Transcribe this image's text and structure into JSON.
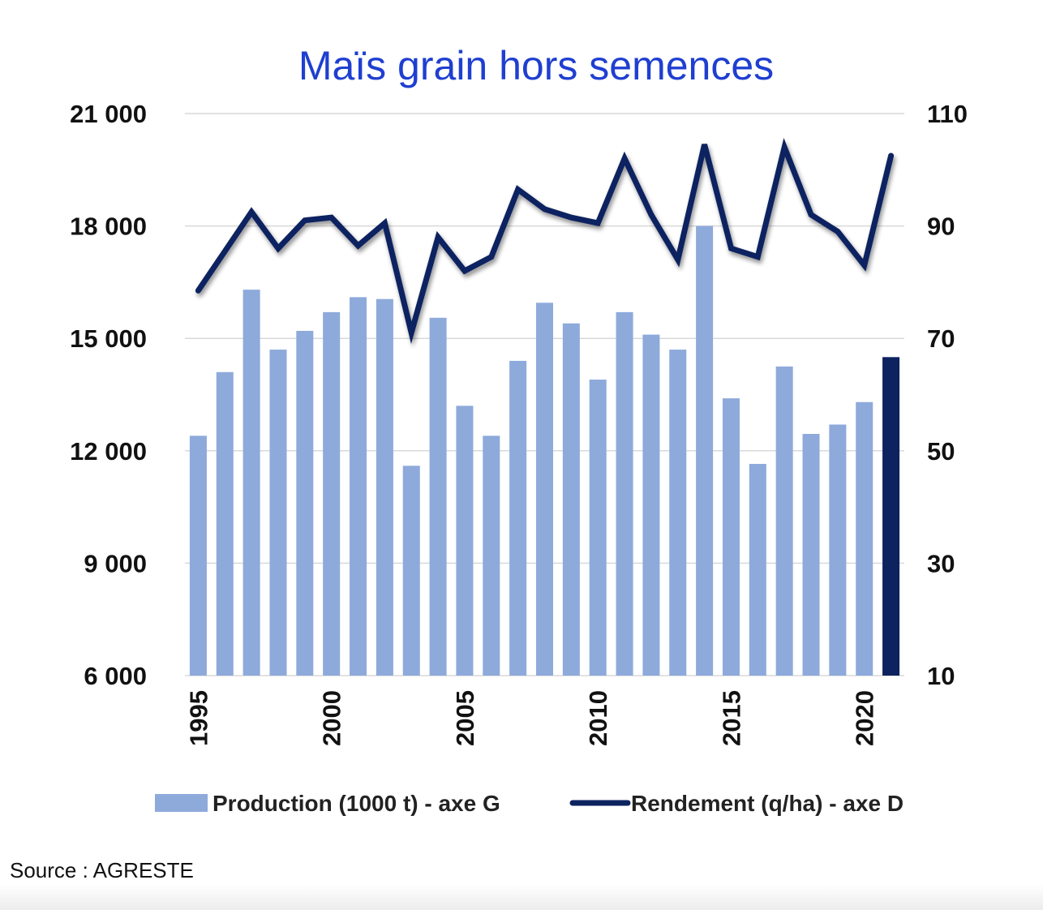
{
  "chart_data": {
    "type": "bar+line",
    "title": "Maïs grain hors semences",
    "years": [
      1995,
      1996,
      1997,
      1998,
      1999,
      2000,
      2001,
      2002,
      2003,
      2004,
      2005,
      2006,
      2007,
      2008,
      2009,
      2010,
      2011,
      2012,
      2013,
      2014,
      2015,
      2016,
      2017,
      2018,
      2019,
      2020,
      2021
    ],
    "x_tick_labels": [
      "1995",
      "2000",
      "2005",
      "2010",
      "2015",
      "2020"
    ],
    "left_axis": {
      "ylim": [
        6000,
        21000
      ],
      "ticks": [
        6000,
        9000,
        12000,
        15000,
        18000,
        21000
      ],
      "tick_labels": [
        "6 000",
        "9 000",
        "12 000",
        "15 000",
        "18 000",
        "21 000"
      ]
    },
    "right_axis": {
      "ylim": [
        10,
        110
      ],
      "ticks": [
        10,
        30,
        50,
        70,
        90,
        110
      ],
      "tick_labels": [
        "10",
        "30",
        "50",
        "70",
        "90",
        "110"
      ]
    },
    "grid": true,
    "legend_position": "bottom",
    "series": [
      {
        "name": "Production (1000 t) - axe G",
        "type": "bar",
        "axis": "left",
        "color": "#8eaadb",
        "highlight_color": "#0d2360",
        "highlight_last": true,
        "values": [
          12400,
          14100,
          16300,
          14700,
          15200,
          15700,
          16100,
          16050,
          11600,
          15550,
          13200,
          12400,
          14400,
          15950,
          15400,
          13900,
          15700,
          15100,
          14700,
          18000,
          13400,
          11650,
          14250,
          12450,
          12700,
          13300,
          14500
        ]
      },
      {
        "name": "Rendement (q/ha) - axe D",
        "type": "line",
        "axis": "right",
        "color": "#0d2360",
        "values": [
          78.5,
          85.5,
          92.5,
          86,
          91,
          91.5,
          86.5,
          90.5,
          71,
          88,
          82,
          84.5,
          96.5,
          93,
          91.5,
          90.5,
          102,
          92,
          84,
          104.5,
          86,
          84.5,
          104,
          92,
          89,
          83,
          102.5
        ]
      }
    ]
  },
  "source": "Source : AGRESTE"
}
